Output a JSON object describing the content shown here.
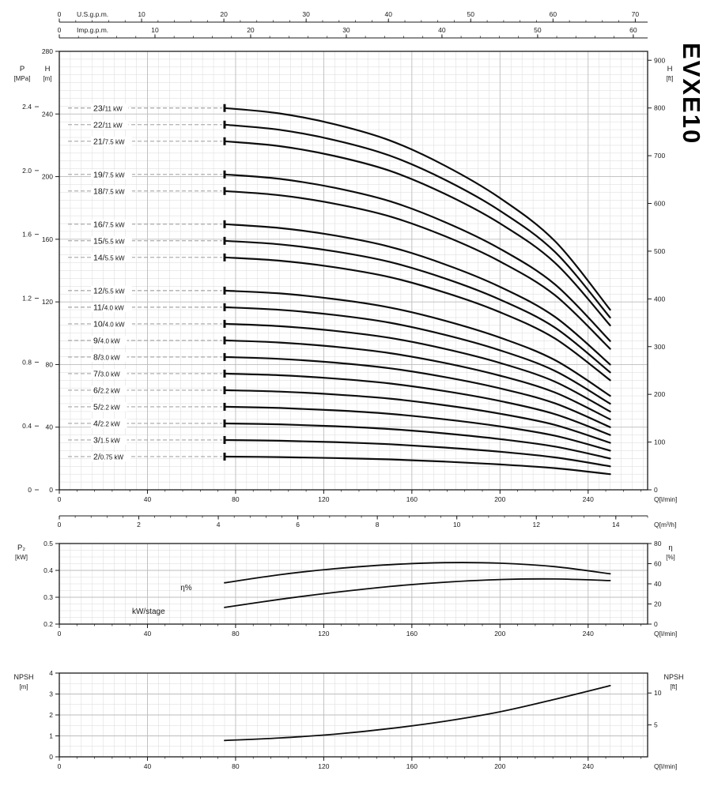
{
  "title": "EVXE10",
  "top_axes": [
    {
      "name": "usgpm",
      "label": "U.S.g.p.m.",
      "ticks": [
        0,
        10,
        20,
        30,
        40,
        50,
        60,
        70
      ],
      "max": 71.5,
      "minor_step": 2
    },
    {
      "name": "impgpm",
      "label": "Imp.g.p.m.",
      "ticks": [
        0,
        10,
        20,
        30,
        40,
        50,
        60
      ],
      "max": 61.5,
      "minor_step": 2
    }
  ],
  "chart_data": [
    {
      "id": "head-flow",
      "type": "line",
      "title": "Head vs flow curves per number of stages",
      "xlim": [
        0,
        267
      ],
      "x_ticks": [
        0,
        40,
        80,
        120,
        160,
        200,
        240
      ],
      "x_label": "Q[l/min]",
      "ylim": [
        0,
        280
      ],
      "y_ticks": [
        0,
        40,
        80,
        120,
        160,
        200,
        240,
        280
      ],
      "left_h_label": [
        "H",
        "[m]"
      ],
      "left_p_label": [
        "P",
        "[MPa]"
      ],
      "p_ticks": [
        "0",
        "0.4",
        "0.8",
        "1.2",
        "1.6",
        "2.0",
        "2.4"
      ],
      "m_per_mpa": 101.94,
      "right_axis": {
        "label": [
          "H",
          "[ft]"
        ],
        "ticks": [
          0,
          100,
          200,
          300,
          400,
          500,
          600,
          700,
          800,
          900
        ],
        "m_per_unit": 0.3048
      },
      "m3h_axis": {
        "label": "Q[m³/h]",
        "ticks": [
          0,
          2,
          4,
          6,
          8,
          10,
          12,
          14
        ],
        "max": 14.8,
        "minor_step": 0.4
      },
      "q_x": [
        75,
        100,
        125,
        150,
        175,
        200,
        225,
        250
      ],
      "per_stage_head_m": [
        10.6,
        10.45,
        10.15,
        9.7,
        9.0,
        8.1,
        6.9,
        5.0
      ],
      "stages": [
        {
          "stage": "23",
          "power": "11 kW",
          "n": 23
        },
        {
          "stage": "22",
          "power": "11 kW",
          "n": 22
        },
        {
          "stage": "21",
          "power": "7.5 kW",
          "n": 21
        },
        {
          "stage": "19",
          "power": "7.5 kW",
          "n": 19
        },
        {
          "stage": "18",
          "power": "7.5 kW",
          "n": 18
        },
        {
          "stage": "16",
          "power": "7.5 kW",
          "n": 16
        },
        {
          "stage": "15",
          "power": "5.5 kW",
          "n": 15
        },
        {
          "stage": "14",
          "power": "5.5 kW",
          "n": 14
        },
        {
          "stage": "12",
          "power": "5.5 kW",
          "n": 12
        },
        {
          "stage": "11",
          "power": "4.0 kW",
          "n": 11
        },
        {
          "stage": "10",
          "power": "4.0 kW",
          "n": 10
        },
        {
          "stage": "9",
          "power": "4.0 kW",
          "n": 9
        },
        {
          "stage": "8",
          "power": "3.0 kW",
          "n": 8
        },
        {
          "stage": "7",
          "power": "3.0 kW",
          "n": 7
        },
        {
          "stage": "6",
          "power": "2.2 kW",
          "n": 6
        },
        {
          "stage": "5",
          "power": "2.2 kW",
          "n": 5
        },
        {
          "stage": "4",
          "power": "2.2 kW",
          "n": 4
        },
        {
          "stage": "3",
          "power": "1.5 kW",
          "n": 3
        },
        {
          "stage": "2",
          "power": "0.75 kW",
          "n": 2
        }
      ]
    },
    {
      "id": "power-efficiency",
      "type": "line",
      "x_ticks": [
        0,
        40,
        80,
        120,
        160,
        200,
        240
      ],
      "x_label": "Q[l/min]",
      "left": {
        "label": [
          "P₂",
          "[kW]"
        ],
        "lim": [
          0.2,
          0.5
        ],
        "ticks": [
          "0.2",
          "0.3",
          "0.4",
          "0.5"
        ]
      },
      "right": {
        "label": [
          "η",
          "[%]"
        ],
        "lim": [
          0,
          80
        ],
        "ticks": [
          0,
          20,
          40,
          60,
          80
        ]
      },
      "series": [
        {
          "name": "η%",
          "axis": "right",
          "x": [
            75,
            100,
            125,
            150,
            175,
            200,
            225,
            250
          ],
          "y": [
            41,
            49,
            55,
            59,
            61,
            60.5,
            57,
            50
          ],
          "label": "η%",
          "label_q": 55,
          "label_v": 0.335
        },
        {
          "name": "kW/stage",
          "axis": "left",
          "x": [
            75,
            100,
            125,
            150,
            175,
            200,
            225,
            250
          ],
          "y": [
            0.262,
            0.292,
            0.318,
            0.34,
            0.356,
            0.366,
            0.368,
            0.362
          ],
          "label": "kW/stage",
          "label_q": 33,
          "label_v": 0.247
        }
      ]
    },
    {
      "id": "npsh",
      "type": "line",
      "x_ticks": [
        0,
        40,
        80,
        120,
        160,
        200,
        240
      ],
      "x_label": "Q[l/min]",
      "left": {
        "label": [
          "NPSH",
          "[m]"
        ],
        "lim": [
          0,
          4
        ],
        "ticks": [
          0,
          1,
          2,
          3,
          4
        ]
      },
      "right": {
        "label": [
          "NPSH",
          "[ft]"
        ],
        "ticks": [
          5,
          10
        ],
        "m_per_unit": 0.3048
      },
      "series": [
        {
          "name": "NPSH",
          "x": [
            75,
            100,
            125,
            150,
            175,
            200,
            225,
            250
          ],
          "y": [
            0.78,
            0.9,
            1.08,
            1.35,
            1.7,
            2.15,
            2.75,
            3.4
          ]
        }
      ]
    }
  ]
}
